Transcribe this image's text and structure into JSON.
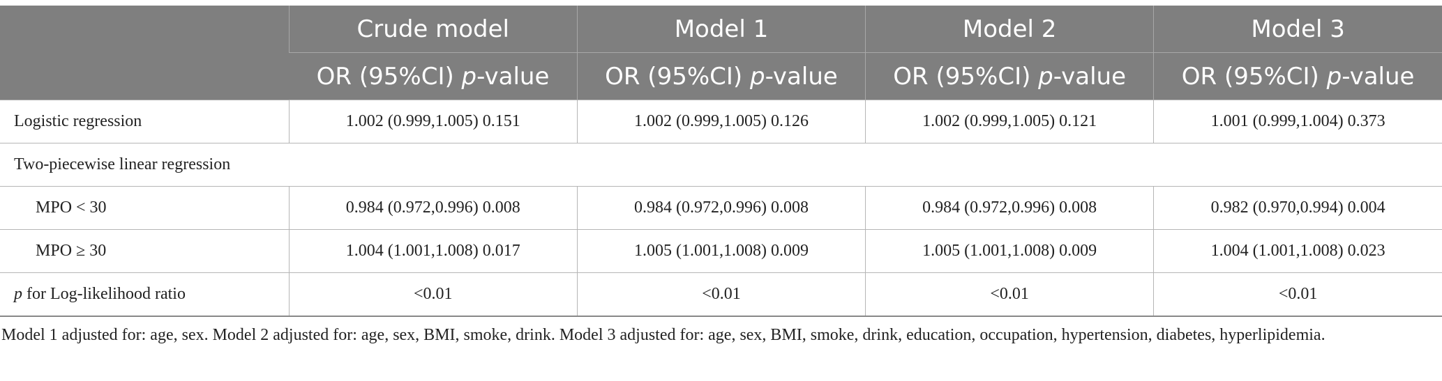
{
  "header": {
    "models": [
      "Crude model",
      "Model 1",
      "Model 2",
      "Model 3"
    ],
    "subheader_prefix": "OR (95%CI)",
    "subheader_p": "p",
    "subheader_suffix": "-value"
  },
  "rows": [
    {
      "label": "Logistic regression",
      "values": [
        "1.002 (0.999,1.005) 0.151",
        "1.002 (0.999,1.005) 0.126",
        "1.002 (0.999,1.005) 0.121",
        "1.001 (0.999,1.004) 0.373"
      ]
    },
    {
      "label": "Two-piecewise linear regression"
    },
    {
      "label": "MPO < 30",
      "values": [
        "0.984 (0.972,0.996) 0.008",
        "0.984 (0.972,0.996) 0.008",
        "0.984 (0.972,0.996) 0.008",
        "0.982 (0.970,0.994) 0.004"
      ]
    },
    {
      "label": "MPO ≥ 30",
      "values": [
        "1.004 (1.001,1.008) 0.017",
        "1.005 (1.001,1.008) 0.009",
        "1.005 (1.001,1.008) 0.009",
        "1.004 (1.001,1.008) 0.023"
      ]
    },
    {
      "label_italic": "p",
      "label_rest": " for Log-likelihood ratio",
      "values": [
        "<0.01",
        "<0.01",
        "<0.01",
        "<0.01"
      ]
    }
  ],
  "footnote": "Model 1 adjusted for: age, sex. Model 2 adjusted for: age, sex, BMI, smoke, drink. Model 3 adjusted for: age, sex, BMI, smoke, drink, education, occupation, hypertension, diabetes, hyperlipidemia."
}
